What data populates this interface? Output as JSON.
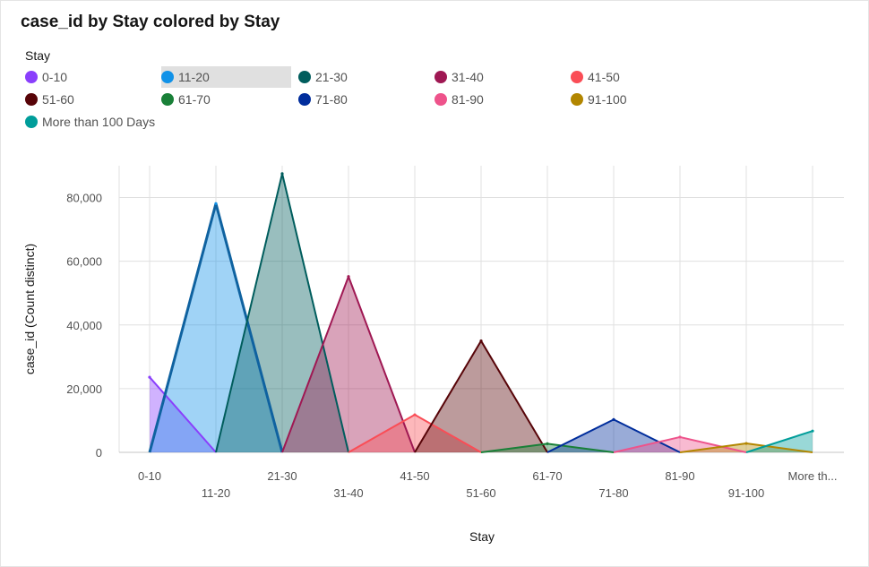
{
  "title": "case_id by Stay colored by Stay",
  "legend": {
    "title": "Stay",
    "highlighted": "11-20"
  },
  "chart_data": {
    "type": "area",
    "title": "case_id by Stay colored by Stay",
    "xlabel": "Stay",
    "ylabel": "case_id (Count distinct)",
    "categories": [
      "0-10",
      "11-20",
      "21-30",
      "31-40",
      "41-50",
      "51-60",
      "61-70",
      "71-80",
      "81-90",
      "91-100",
      "More than 100 Days"
    ],
    "tick_labels": [
      "0-10",
      "11-20",
      "21-30",
      "31-40",
      "41-50",
      "51-60",
      "61-70",
      "71-80",
      "81-90",
      "91-100",
      "More th..."
    ],
    "y_ticks": [
      "0",
      "20,000",
      "40,000",
      "60,000",
      "80,000"
    ],
    "ylim": [
      0,
      90000
    ],
    "grid": true,
    "legend_position": "top",
    "series": [
      {
        "name": "0-10",
        "color": "#8a3ffc",
        "values": [
          23600,
          0,
          0,
          0,
          0,
          0,
          0,
          0,
          0,
          0,
          0
        ]
      },
      {
        "name": "11-20",
        "color": "#1192e8",
        "values": [
          0,
          78100,
          0,
          0,
          0,
          0,
          0,
          0,
          0,
          0,
          0
        ]
      },
      {
        "name": "21-30",
        "color": "#005d5d",
        "values": [
          0,
          0,
          87500,
          0,
          0,
          0,
          0,
          0,
          0,
          0,
          0
        ]
      },
      {
        "name": "31-40",
        "color": "#9f1853",
        "values": [
          0,
          0,
          0,
          55200,
          0,
          0,
          0,
          0,
          0,
          0,
          0
        ]
      },
      {
        "name": "41-50",
        "color": "#fa4d56",
        "values": [
          0,
          0,
          0,
          0,
          11800,
          0,
          0,
          0,
          0,
          0,
          0
        ]
      },
      {
        "name": "51-60",
        "color": "#570408",
        "values": [
          0,
          0,
          0,
          0,
          0,
          35000,
          0,
          0,
          0,
          0,
          0
        ]
      },
      {
        "name": "61-70",
        "color": "#198038",
        "values": [
          0,
          0,
          0,
          0,
          0,
          0,
          2700,
          0,
          0,
          0,
          0
        ]
      },
      {
        "name": "71-80",
        "color": "#002d9c",
        "values": [
          0,
          0,
          0,
          0,
          0,
          0,
          0,
          10300,
          0,
          0,
          0
        ]
      },
      {
        "name": "81-90",
        "color": "#ee538b",
        "values": [
          0,
          0,
          0,
          0,
          0,
          0,
          0,
          0,
          4800,
          0,
          0
        ]
      },
      {
        "name": "91-100",
        "color": "#b28600",
        "values": [
          0,
          0,
          0,
          0,
          0,
          0,
          0,
          0,
          0,
          2800,
          0
        ]
      },
      {
        "name": "More than 100 Days",
        "color": "#009d9a",
        "values": [
          0,
          0,
          0,
          0,
          0,
          0,
          0,
          0,
          0,
          0,
          6700
        ]
      }
    ],
    "series_colors": {
      "0-10": "#8a3ffc",
      "11-20": "#1192e8",
      "21-30": "#005d5d",
      "31-40": "#9f1853",
      "41-50": "#fa4d56",
      "51-60": "#570408",
      "61-70": "#198038",
      "71-80": "#002d9c",
      "81-90": "#ee538b",
      "91-100": "#b28600",
      "More than 100 Days": "#009d9a"
    }
  }
}
